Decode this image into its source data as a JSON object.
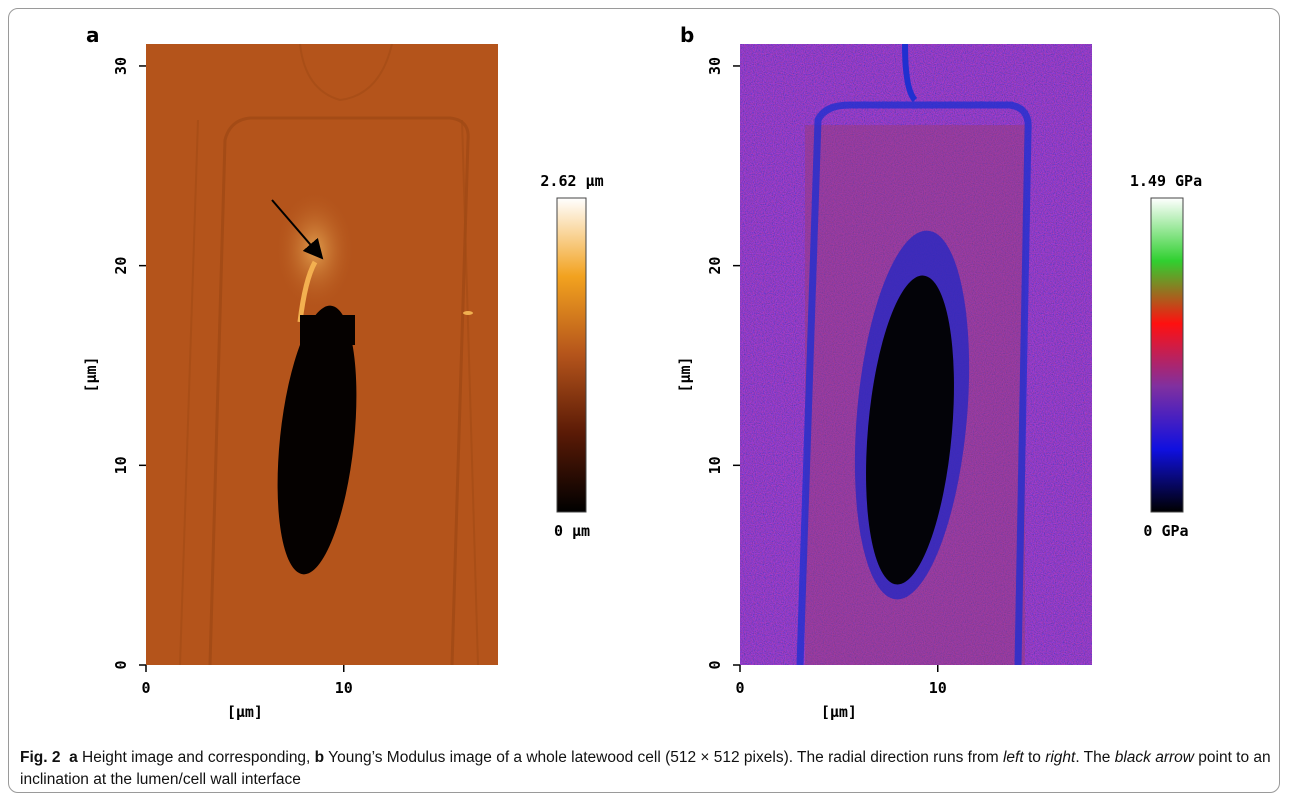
{
  "panels": [
    {
      "label": "a",
      "xlabel": "[µm]",
      "ylabel": "[µm]",
      "xlim": [
        0,
        17.8
      ],
      "ylim": [
        0,
        31.1
      ],
      "xticks": [
        0,
        10
      ],
      "yticks": [
        0,
        10,
        20,
        30
      ],
      "colorbar": {
        "max_label": "2.62 µm",
        "min_label": "0 µm",
        "colors": [
          "#000000",
          "#5a1a06",
          "#b4541b",
          "#f2a21f",
          "#ffffff"
        ]
      }
    },
    {
      "label": "b",
      "xlabel": "[µm]",
      "ylabel": "[µm]",
      "xlim": [
        0,
        17.8
      ],
      "ylim": [
        0,
        31.1
      ],
      "xticks": [
        0,
        10
      ],
      "yticks": [
        0,
        10,
        20,
        30
      ],
      "colorbar": {
        "max_label": "1.49 GPa",
        "min_label": "0 GPa",
        "colors": [
          "#000000",
          "#1010e0",
          "#8030a0",
          "#ff1010",
          "#30d030",
          "#ffffff"
        ]
      }
    }
  ],
  "caption": [
    {
      "text": "Fig. 2",
      "style": "bold"
    },
    {
      "text": "  a",
      "style": "bold"
    },
    {
      "text": " Height image and corresponding, ",
      "style": "plain"
    },
    {
      "text": "b",
      "style": "bold"
    },
    {
      "text": " Young’s Modulus image of a whole latewood cell (512 × 512 pixels). The radial direction runs from ",
      "style": "plain"
    },
    {
      "text": "left",
      "style": "italic"
    },
    {
      "text": " to ",
      "style": "plain"
    },
    {
      "text": "right",
      "style": "italic"
    },
    {
      "text": ". The ",
      "style": "plain"
    },
    {
      "text": "black arrow",
      "style": "italic"
    },
    {
      "text": " point to an inclination at the lumen/cell wall interface",
      "style": "plain"
    }
  ]
}
